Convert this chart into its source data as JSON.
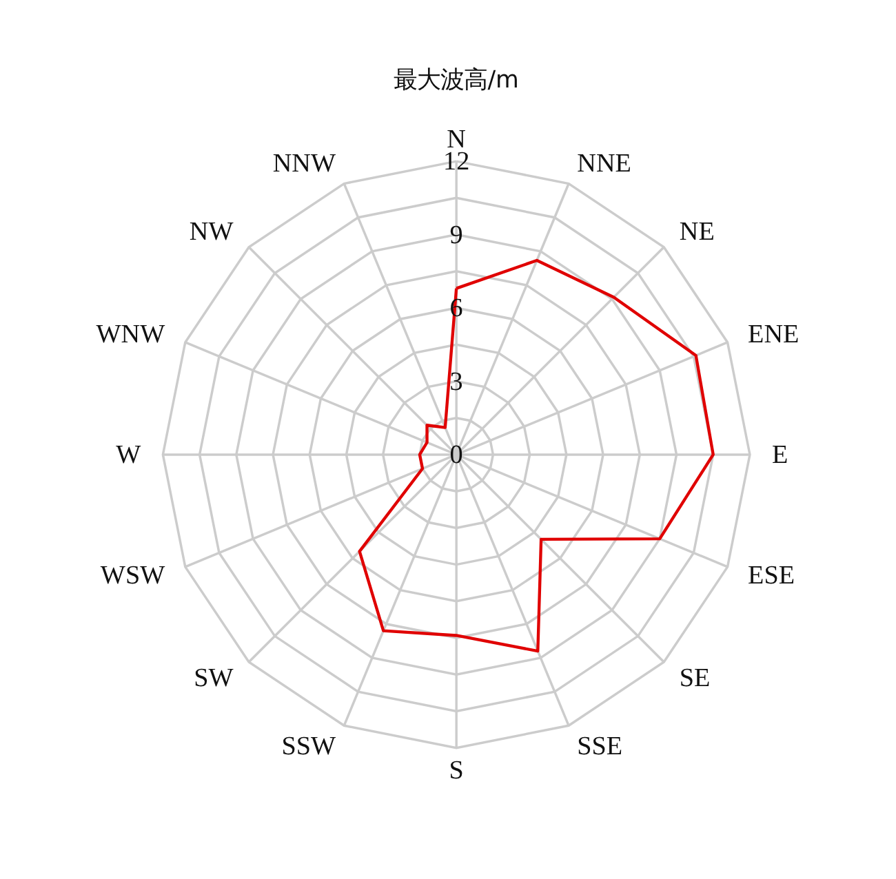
{
  "chart_data": {
    "type": "radar",
    "title": "最大波高/m",
    "categories": [
      "N",
      "NNE",
      "NE",
      "ENE",
      "E",
      "ESE",
      "SE",
      "SSE",
      "S",
      "SSW",
      "SW",
      "WSW",
      "W",
      "WNW",
      "NW",
      "NNW"
    ],
    "series": [
      {
        "color": "#e00000",
        "values": [
          6.8,
          8.6,
          9.1,
          10.6,
          10.5,
          9.0,
          4.9,
          8.7,
          7.4,
          7.8,
          5.6,
          1.5,
          1.5,
          1.3,
          1.7,
          1.2
        ]
      }
    ],
    "ylim": [
      0,
      12
    ],
    "yticks": [
      0,
      3,
      6,
      9,
      12
    ],
    "grid": true
  }
}
